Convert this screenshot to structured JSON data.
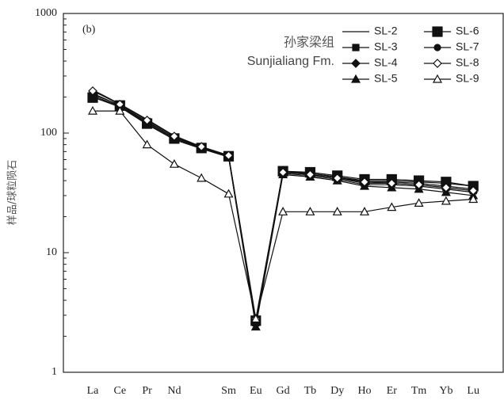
{
  "chart_data": {
    "type": "line",
    "panel_label": "(b)",
    "annotation": "孙家梁组",
    "subtitle": "Sunjialiang Fm.",
    "y_label": "样品/球粒陨石",
    "log_y": true,
    "categories": [
      "La",
      "Ce",
      "Pr",
      "Nd",
      null,
      "Sm",
      "Eu",
      "Gd",
      "Tb",
      "Dy",
      "Ho",
      "Er",
      "Tm",
      "Yb",
      "Lu"
    ],
    "ylim": [
      1,
      1000
    ],
    "yticks": [
      1,
      10,
      100,
      1000
    ],
    "series": [
      {
        "name": "SL-2",
        "color": "#111",
        "marker": "none",
        "values": [
          230,
          175,
          130,
          95,
          77,
          65,
          2.7,
          48,
          46,
          43,
          40,
          40,
          39,
          38,
          36
        ]
      },
      {
        "name": "SL-3",
        "color": "#111",
        "marker": "square",
        "values": [
          215,
          170,
          125,
          92,
          76,
          64,
          2.6,
          47,
          45,
          42,
          38,
          38,
          37,
          35,
          33
        ]
      },
      {
        "name": "SL-4",
        "color": "#111",
        "marker": "diamond",
        "values": [
          205,
          168,
          120,
          90,
          75,
          63,
          2.5,
          46,
          44,
          41,
          37,
          37,
          36,
          34,
          32
        ]
      },
      {
        "name": "SL-5",
        "color": "#111",
        "marker": "triangle",
        "values": [
          200,
          165,
          118,
          88,
          74,
          63,
          2.4,
          45,
          43,
          40,
          36,
          35,
          34,
          32,
          30
        ]
      },
      {
        "name": "SL-6",
        "color": "#111",
        "marker": "big-square",
        "values": [
          198,
          170,
          120,
          90,
          75,
          64,
          2.7,
          48,
          47,
          44,
          41,
          41,
          40,
          39,
          36
        ]
      },
      {
        "name": "SL-7",
        "color": "#111",
        "marker": "circle",
        "values": [
          210,
          172,
          123,
          92,
          76,
          64,
          2.6,
          47,
          46,
          43,
          39,
          39,
          38,
          36,
          34
        ]
      },
      {
        "name": "SL-8",
        "color": "#111",
        "marker": "open-diamond",
        "values": [
          225,
          174,
          128,
          94,
          77,
          65,
          2.8,
          47,
          45,
          42,
          39,
          38,
          37,
          35,
          33
        ]
      },
      {
        "name": "SL-9",
        "color": "#111",
        "marker": "open-triangle",
        "values": [
          153,
          153,
          80,
          55,
          42,
          31,
          2.8,
          22,
          22,
          22,
          22,
          24,
          26,
          27,
          28
        ]
      }
    ]
  }
}
